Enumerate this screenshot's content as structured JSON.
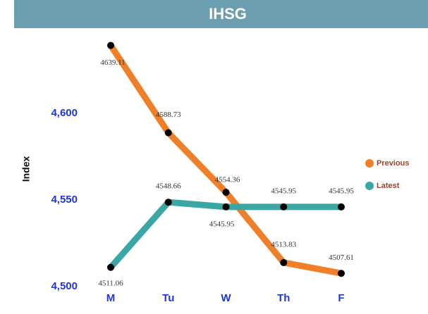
{
  "chart_data": {
    "type": "line",
    "title": "IHSG",
    "y_label": "Index",
    "categories": [
      "M",
      "Tu",
      "W",
      "Th",
      "F"
    ],
    "series": [
      {
        "name": "Previous",
        "color": "#f07f2a",
        "values": [
          4639.11,
          4588.73,
          4554.36,
          4513.83,
          4507.61
        ]
      },
      {
        "name": "Latest",
        "color": "#3aa6a6",
        "values": [
          4511.06,
          4548.66,
          4545.95,
          4545.95,
          4545.95
        ]
      }
    ],
    "ylim": [
      4500,
      4645
    ],
    "yticks": [
      {
        "value": 4500,
        "label": "4,500"
      },
      {
        "value": 4550,
        "label": "4,550"
      },
      {
        "value": 4600,
        "label": "4,600"
      }
    ],
    "grid": false,
    "legend": "right"
  }
}
